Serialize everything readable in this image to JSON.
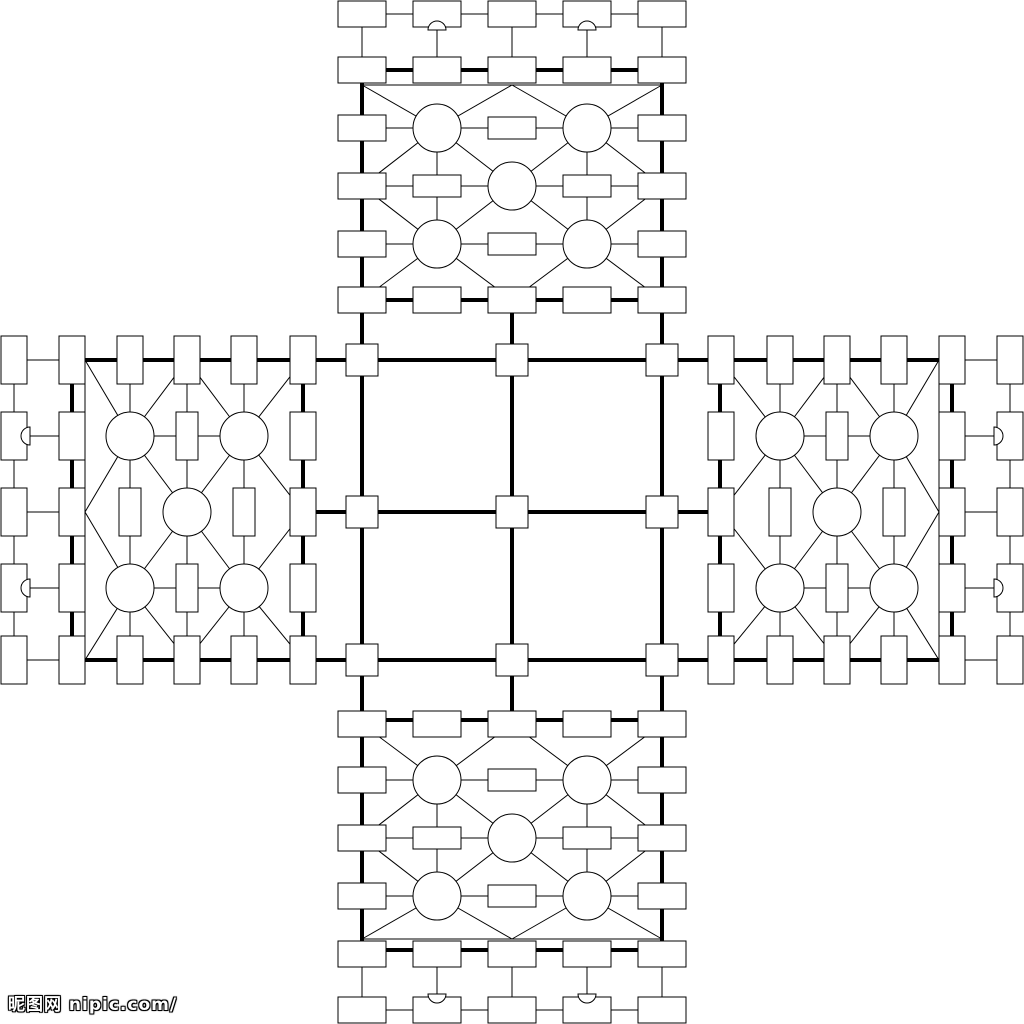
{
  "diagram": {
    "type": "cross-shaped-lattice-pattern",
    "arms": [
      "top",
      "left",
      "right",
      "bottom"
    ],
    "center_grid": {
      "rows": 2,
      "cols": 2
    },
    "node_shapes": [
      "rectangle",
      "circle",
      "square"
    ]
  },
  "colors": {
    "line": "#000000",
    "fill": "#ffffff"
  },
  "watermark": {
    "text": "昵图网 nipic.com/"
  }
}
